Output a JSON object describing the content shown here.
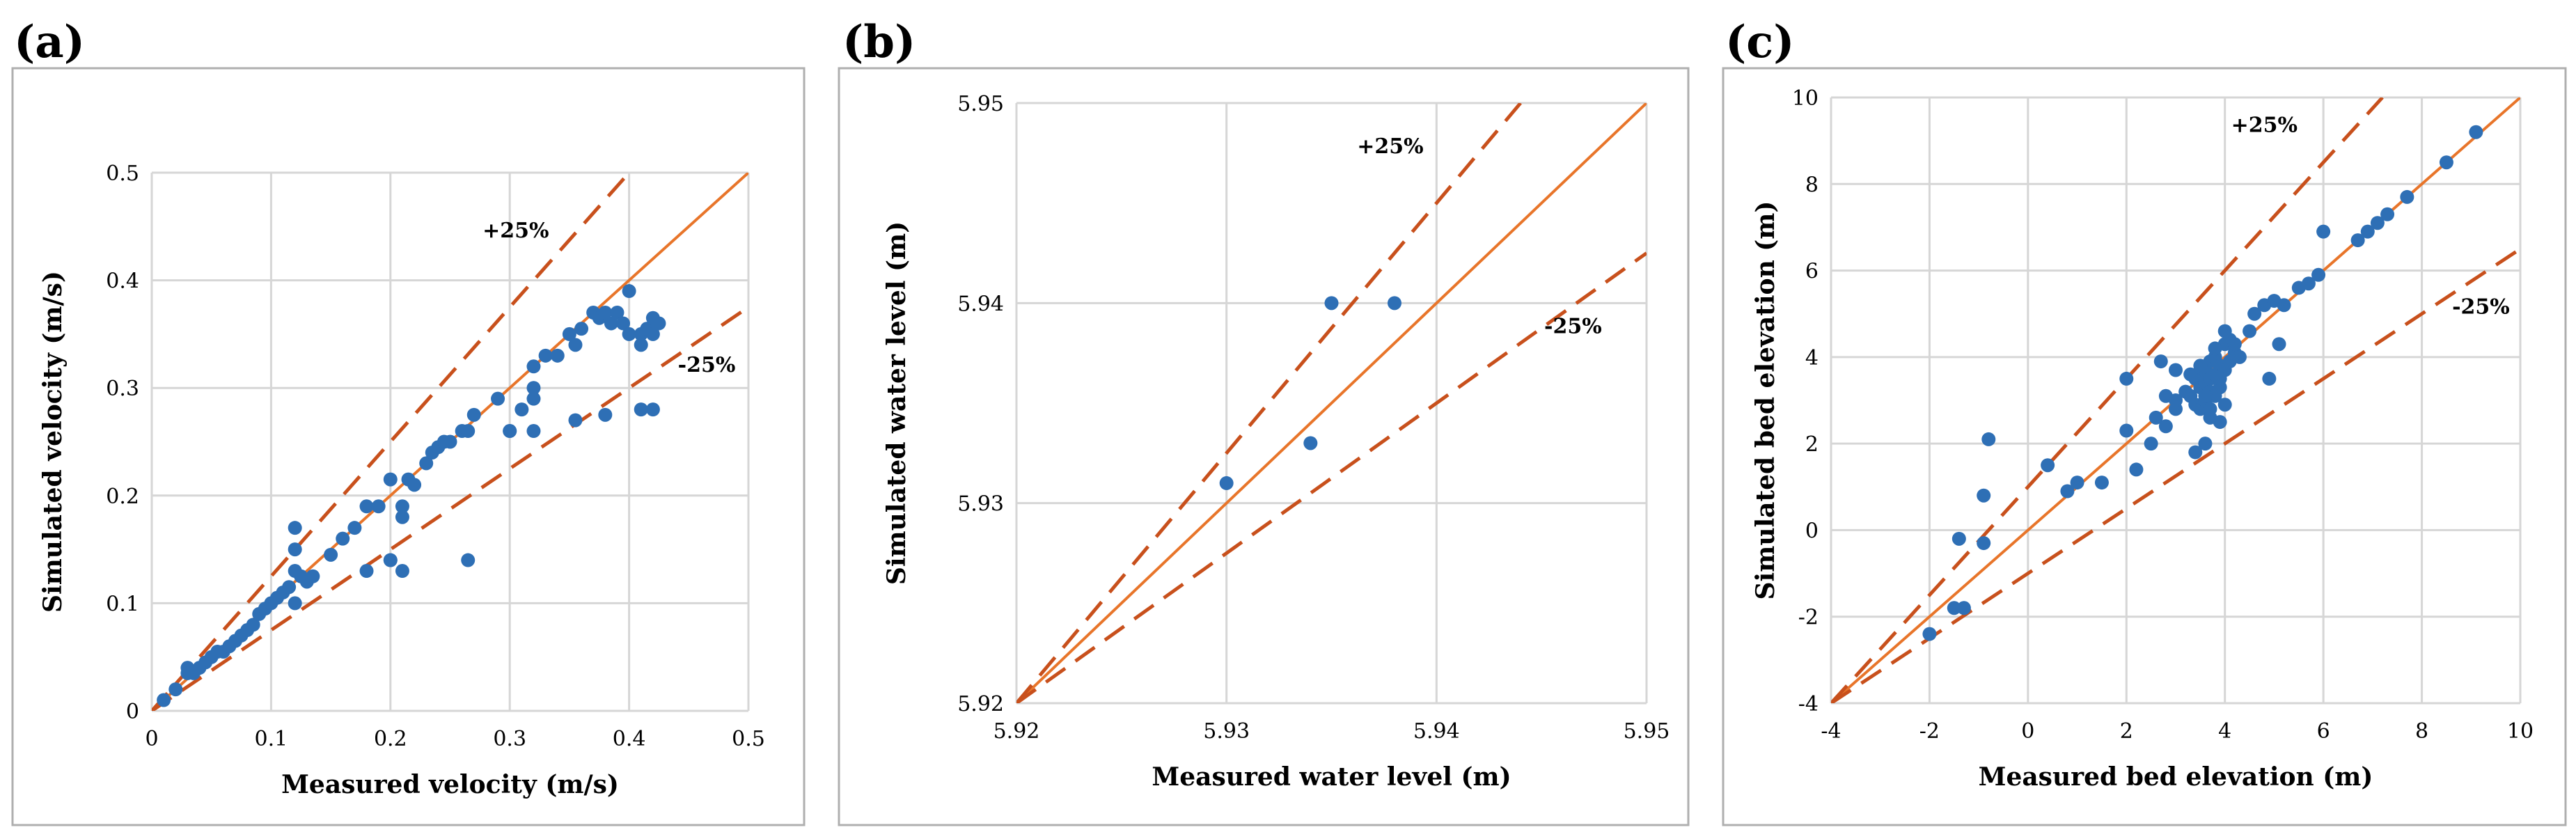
{
  "figure": {
    "colors": {
      "point": "#2E6FB5",
      "line": "#E8752A",
      "bound": "#C8501C",
      "grid": "#D6D6D6",
      "frame": "#AFAFAF",
      "text": "#000000"
    }
  },
  "chart_data": [
    {
      "type": "scatter",
      "panel_label": "(a)",
      "xlabel": "Measured velocity (m/s)",
      "ylabel": "Simulated velocity (m/s)",
      "xlim": [
        0,
        0.5
      ],
      "ylim": [
        0,
        0.5
      ],
      "xticks": [
        0,
        0.1,
        0.2,
        0.3,
        0.4,
        0.5
      ],
      "yticks": [
        0,
        0.1,
        0.2,
        0.3,
        0.4,
        0.5
      ],
      "xtick_labels": [
        "0",
        "0.1",
        "0.2",
        "0.3",
        "0.4",
        "0.5"
      ],
      "ytick_labels": [
        "0",
        "0.1",
        "0.2",
        "0.3",
        "0.4",
        "0.5"
      ],
      "grid": true,
      "lines": [
        {
          "name": "1:1 line",
          "slope": 1.0,
          "style": "solid"
        },
        {
          "name": "+25%",
          "slope": 1.25,
          "style": "dashed",
          "label": "+25%",
          "label_at": [
            0.305,
            0.44
          ]
        },
        {
          "name": "-25%",
          "slope": 0.75,
          "style": "dashed",
          "label": "-25%",
          "label_at": [
            0.465,
            0.315
          ]
        }
      ],
      "x": [
        0.01,
        0.02,
        0.03,
        0.03,
        0.035,
        0.04,
        0.045,
        0.05,
        0.055,
        0.06,
        0.065,
        0.07,
        0.075,
        0.08,
        0.085,
        0.09,
        0.095,
        0.1,
        0.105,
        0.11,
        0.115,
        0.12,
        0.12,
        0.125,
        0.13,
        0.135,
        0.12,
        0.12,
        0.15,
        0.16,
        0.17,
        0.18,
        0.18,
        0.19,
        0.2,
        0.2,
        0.21,
        0.21,
        0.215,
        0.22,
        0.23,
        0.235,
        0.24,
        0.245,
        0.25,
        0.26,
        0.265,
        0.27,
        0.29,
        0.3,
        0.31,
        0.32,
        0.32,
        0.32,
        0.33,
        0.34,
        0.35,
        0.355,
        0.36,
        0.37,
        0.375,
        0.38,
        0.385,
        0.39,
        0.395,
        0.4,
        0.4,
        0.41,
        0.41,
        0.415,
        0.42,
        0.42,
        0.425,
        0.41,
        0.42,
        0.38,
        0.355,
        0.3,
        0.32,
        0.265,
        0.2,
        0.21
      ],
      "y": [
        0.01,
        0.02,
        0.04,
        0.035,
        0.035,
        0.04,
        0.045,
        0.05,
        0.055,
        0.055,
        0.06,
        0.065,
        0.07,
        0.075,
        0.08,
        0.09,
        0.095,
        0.1,
        0.105,
        0.11,
        0.115,
        0.13,
        0.15,
        0.125,
        0.12,
        0.125,
        0.17,
        0.1,
        0.145,
        0.16,
        0.17,
        0.13,
        0.19,
        0.19,
        0.215,
        0.14,
        0.19,
        0.18,
        0.215,
        0.21,
        0.23,
        0.24,
        0.245,
        0.25,
        0.25,
        0.26,
        0.26,
        0.275,
        0.29,
        0.26,
        0.28,
        0.3,
        0.32,
        0.29,
        0.33,
        0.33,
        0.35,
        0.34,
        0.355,
        0.37,
        0.365,
        0.37,
        0.36,
        0.37,
        0.36,
        0.39,
        0.35,
        0.35,
        0.34,
        0.355,
        0.35,
        0.365,
        0.36,
        0.28,
        0.28,
        0.275,
        0.27,
        0.26,
        0.26,
        0.14,
        0.14,
        0.13
      ]
    },
    {
      "type": "scatter",
      "panel_label": "(b)",
      "xlabel": "Measured water level (m)",
      "ylabel": "Simulated water level (m)",
      "xlim": [
        5.92,
        5.95
      ],
      "ylim": [
        5.92,
        5.95
      ],
      "xticks": [
        5.92,
        5.93,
        5.94,
        5.95
      ],
      "yticks": [
        5.92,
        5.93,
        5.94,
        5.95
      ],
      "xtick_labels": [
        "5.92",
        "5.93",
        "5.94",
        "5.95"
      ],
      "ytick_labels": [
        "5.92",
        "5.93",
        "5.94",
        "5.95"
      ],
      "grid": true,
      "lines": [
        {
          "name": "1:1 line",
          "slope": 1.0,
          "style": "solid"
        },
        {
          "name": "+25%",
          "slope": 1.25,
          "style": "dashed",
          "label": "+25%",
          "label_at": [
            5.9378,
            5.9475
          ]
        },
        {
          "name": "-25%",
          "slope": 0.75,
          "style": "dashed",
          "label": "-25%",
          "label_at": [
            5.9465,
            5.9385
          ]
        }
      ],
      "x": [
        5.93,
        5.934,
        5.935,
        5.938
      ],
      "y": [
        5.931,
        5.933,
        5.94,
        5.94
      ]
    },
    {
      "type": "scatter",
      "panel_label": "(c)",
      "xlabel": "Measured bed elevation (m)",
      "ylabel": "Simulated bed elevation (m)",
      "xlim": [
        -4,
        10
      ],
      "ylim": [
        -4,
        10
      ],
      "xticks": [
        -4,
        -2,
        0,
        2,
        4,
        6,
        8,
        10
      ],
      "yticks": [
        -4,
        -2,
        0,
        2,
        4,
        6,
        8,
        10
      ],
      "xtick_labels": [
        "-4",
        "-2",
        "0",
        "2",
        "4",
        "6",
        "8",
        "10"
      ],
      "ytick_labels": [
        "-4",
        "-2",
        "0",
        "2",
        "4",
        "6",
        "8",
        "10"
      ],
      "grid": true,
      "lines": [
        {
          "name": "1:1 line",
          "slope": 1.0,
          "style": "solid"
        },
        {
          "name": "+25%",
          "slope": 1.25,
          "style": "dashed",
          "label": "+25%",
          "label_at": [
            4.8,
            9.2
          ]
        },
        {
          "name": "-25%",
          "slope": 0.75,
          "style": "dashed",
          "label": "-25%",
          "label_at": [
            9.2,
            5.0
          ]
        }
      ],
      "x": [
        -2.0,
        -1.5,
        -1.3,
        -1.4,
        -0.9,
        -0.9,
        -0.8,
        0.4,
        0.8,
        1.0,
        1.5,
        2.0,
        2.0,
        2.2,
        2.5,
        2.6,
        2.7,
        2.8,
        3.0,
        3.0,
        3.2,
        3.3,
        3.4,
        3.4,
        3.4,
        3.5,
        3.5,
        3.5,
        3.5,
        3.6,
        3.6,
        3.6,
        3.6,
        3.7,
        3.7,
        3.7,
        3.7,
        3.8,
        3.8,
        3.8,
        3.9,
        3.9,
        3.9,
        4.0,
        4.0,
        4.0,
        4.1,
        4.1,
        4.2,
        4.2,
        4.3,
        4.5,
        4.6,
        4.8,
        5.0,
        5.1,
        5.2,
        5.5,
        5.7,
        5.9,
        6.0,
        6.7,
        6.9,
        7.1,
        7.3,
        7.7,
        8.5,
        9.1,
        3.6,
        3.7,
        3.5,
        3.8,
        4.0,
        3.3,
        4.9,
        3.9,
        3.0,
        2.8
      ],
      "y": [
        -2.4,
        -1.8,
        -1.8,
        -0.2,
        -0.3,
        0.8,
        2.1,
        1.5,
        0.9,
        1.1,
        1.1,
        2.3,
        3.5,
        1.4,
        2.0,
        2.6,
        3.9,
        3.1,
        2.8,
        3.7,
        3.2,
        3.1,
        3.5,
        2.9,
        1.8,
        3.4,
        3.3,
        2.8,
        3.6,
        3.7,
        3.0,
        3.4,
        2.0,
        3.5,
        3.9,
        3.2,
        2.8,
        3.6,
        4.0,
        3.1,
        3.8,
        3.3,
        2.5,
        4.3,
        3.7,
        2.9,
        4.4,
        3.9,
        4.1,
        4.3,
        4.0,
        4.6,
        5.0,
        5.2,
        5.3,
        4.3,
        5.2,
        5.6,
        5.7,
        5.9,
        6.9,
        6.7,
        6.9,
        7.1,
        7.3,
        7.7,
        8.5,
        9.2,
        3.1,
        2.6,
        3.8,
        4.2,
        4.6,
        3.6,
        3.5,
        3.5,
        3.0,
        2.4
      ]
    }
  ]
}
